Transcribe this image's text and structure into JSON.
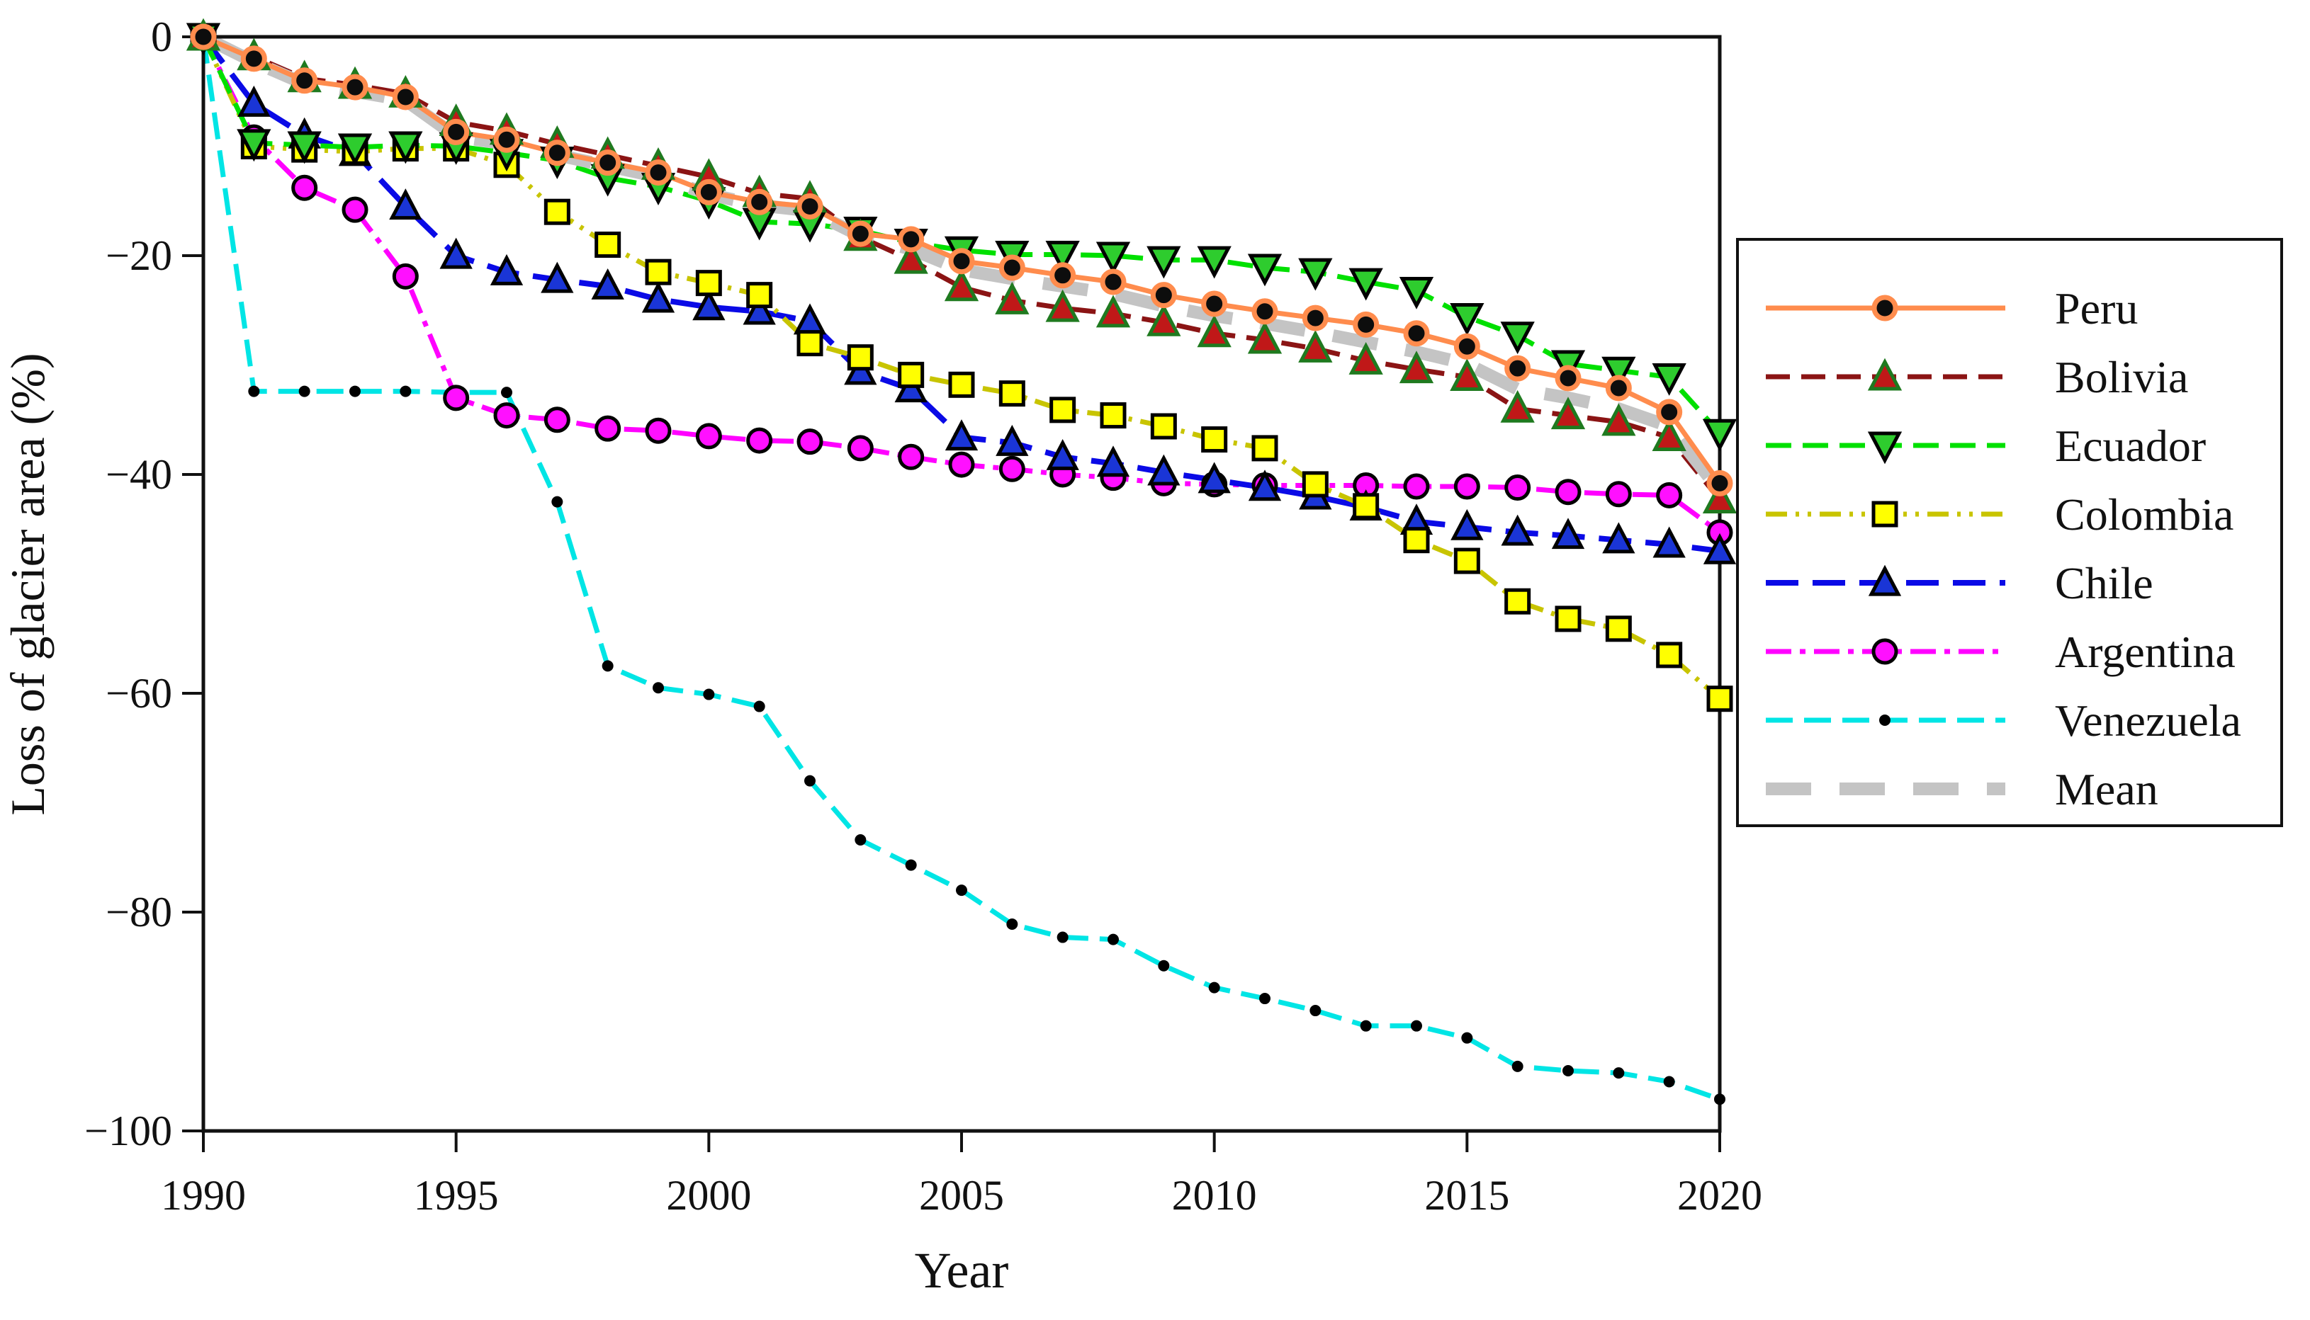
{
  "chart_data": {
    "type": "line",
    "title": "",
    "xlabel": "Year",
    "ylabel": "Loss of glacier area (%)",
    "xlim": [
      1990,
      2020
    ],
    "ylim": [
      -100,
      0
    ],
    "grid": false,
    "legend_position": "right",
    "x_ticks": [
      1990,
      1995,
      2000,
      2005,
      2010,
      2015,
      2020
    ],
    "y_ticks": [
      0,
      -20,
      -40,
      -60,
      -80,
      -100
    ],
    "y_tick_labels": [
      "0",
      "−20",
      "−40",
      "−60",
      "−80",
      "−100"
    ],
    "x": [
      1990,
      1991,
      1992,
      1993,
      1994,
      1995,
      1996,
      1997,
      1998,
      1999,
      2000,
      2001,
      2002,
      2003,
      2004,
      2005,
      2006,
      2007,
      2008,
      2009,
      2010,
      2011,
      2012,
      2013,
      2014,
      2015,
      2016,
      2017,
      2018,
      2019,
      2020
    ],
    "series": [
      {
        "id": "peru",
        "label": "Peru",
        "line_color": "#FF8C4D",
        "line_style": "solid",
        "dash": "",
        "line_width": 7,
        "marker": "circle",
        "marker_fill": "#0d0d0d",
        "marker_edge": "#FF8C4D",
        "marker_edge_width": 7,
        "marker_size": 15,
        "values": [
          0,
          -2.0,
          -4.0,
          -4.6,
          -5.5,
          -8.7,
          -9.4,
          -10.6,
          -11.5,
          -12.4,
          -14.2,
          -15.1,
          -15.5,
          -18.0,
          -18.5,
          -20.5,
          -21.1,
          -21.8,
          -22.4,
          -23.6,
          -24.4,
          -25.1,
          -25.7,
          -26.3,
          -27.1,
          -28.3,
          -30.3,
          -31.2,
          -32.1,
          -34.3,
          -40.8
        ]
      },
      {
        "id": "bolivia",
        "label": "Bolivia",
        "line_color": "#8B1414",
        "line_style": "dashed",
        "dash": "34 16",
        "line_width": 7,
        "marker": "triangle-up",
        "marker_fill": "#C01818",
        "marker_edge": "#1F7A1F",
        "marker_edge_width": 5,
        "marker_size": 20,
        "values": [
          0,
          -1.8,
          -3.8,
          -4.4,
          -5.2,
          -7.8,
          -8.6,
          -9.8,
          -10.8,
          -11.8,
          -12.8,
          -14.3,
          -14.8,
          -18.3,
          -20.4,
          -22.9,
          -24.1,
          -24.8,
          -25.3,
          -26.1,
          -27.1,
          -27.7,
          -28.5,
          -29.6,
          -30.4,
          -31.1,
          -34.0,
          -34.6,
          -35.2,
          -36.6,
          -42.3
        ]
      },
      {
        "id": "ecuador",
        "label": "Ecuador",
        "line_color": "#00E000",
        "line_style": "dashed",
        "dash": "36 16",
        "line_width": 7,
        "marker": "triangle-down",
        "marker_fill": "#2ECC2E",
        "marker_edge": "#000000",
        "marker_edge_width": 5,
        "marker_size": 20,
        "values": [
          0,
          -9.7,
          -9.9,
          -10.1,
          -9.9,
          -10.0,
          -10.6,
          -11.3,
          -12.9,
          -13.7,
          -15.0,
          -16.9,
          -17.1,
          -17.7,
          -18.8,
          -19.5,
          -19.9,
          -19.9,
          -20.0,
          -20.4,
          -20.4,
          -21.1,
          -21.5,
          -22.4,
          -23.2,
          -25.6,
          -27.3,
          -29.9,
          -30.5,
          -31.1,
          -36.2
        ]
      },
      {
        "id": "colombia",
        "label": "Colombia",
        "line_color": "#C8C400",
        "line_style": "dash-dot-dot",
        "dash": "30 12 5 12 5 12",
        "line_width": 7,
        "marker": "square",
        "marker_fill": "#FFFF00",
        "marker_edge": "#000000",
        "marker_edge_width": 5,
        "marker_size": 16,
        "values": [
          0,
          -10.0,
          -10.3,
          -10.5,
          -10.2,
          -10.2,
          -11.7,
          -16.0,
          -19.0,
          -21.5,
          -22.5,
          -23.6,
          -28.0,
          -29.3,
          -30.9,
          -31.8,
          -32.6,
          -34.1,
          -34.6,
          -35.6,
          -36.8,
          -37.6,
          -40.9,
          -42.9,
          -46.0,
          -47.9,
          -51.6,
          -53.2,
          -54.1,
          -56.5,
          -60.5
        ]
      },
      {
        "id": "chile",
        "label": "Chile",
        "line_color": "#0A0AE6",
        "line_style": "long-dash",
        "dash": "46 20",
        "line_width": 8,
        "marker": "triangle-up",
        "marker_fill": "#1A35D6",
        "marker_edge": "#000000",
        "marker_edge_width": 5,
        "marker_size": 19,
        "values": [
          0,
          -6.1,
          -9.0,
          -10.6,
          -15.5,
          -20.0,
          -21.5,
          -22.2,
          -22.8,
          -24.0,
          -24.7,
          -25.1,
          -26.0,
          -30.6,
          -32.2,
          -36.6,
          -37.1,
          -38.4,
          -39.0,
          -39.8,
          -40.5,
          -41.2,
          -42.0,
          -43.0,
          -44.3,
          -44.8,
          -45.3,
          -45.6,
          -46.0,
          -46.4,
          -47.0
        ]
      },
      {
        "id": "argentina",
        "label": "Argentina",
        "line_color": "#FF00FF",
        "line_style": "dash-dot",
        "dash": "36 12 8 12",
        "line_width": 7,
        "marker": "circle",
        "marker_fill": "#FF10FF",
        "marker_edge": "#000000",
        "marker_edge_width": 5,
        "marker_size": 16,
        "values": [
          0,
          -9.2,
          -13.8,
          -15.8,
          -21.9,
          -33.0,
          -34.6,
          -35.0,
          -35.8,
          -36.0,
          -36.5,
          -36.9,
          -37.0,
          -37.6,
          -38.4,
          -39.1,
          -39.5,
          -40.0,
          -40.3,
          -40.8,
          -40.9,
          -41.0,
          -41.0,
          -41.0,
          -41.1,
          -41.1,
          -41.2,
          -41.6,
          -41.8,
          -41.9,
          -45.3
        ]
      },
      {
        "id": "venezuela",
        "label": "Venezuela",
        "line_color": "#00E5E5",
        "line_style": "dashed",
        "dash": "38 16",
        "line_width": 7,
        "marker": "dot",
        "marker_fill": "#000000",
        "marker_edge": "#000000",
        "marker_edge_width": 0,
        "marker_size": 8,
        "values": [
          0,
          -32.4,
          -32.4,
          -32.4,
          -32.4,
          -32.5,
          -32.5,
          -42.5,
          -57.5,
          -59.5,
          -60.1,
          -61.2,
          -68.0,
          -73.4,
          -75.7,
          -78.0,
          -81.1,
          -82.3,
          -82.5,
          -84.9,
          -86.9,
          -87.9,
          -89.0,
          -90.4,
          -90.4,
          -91.5,
          -94.1,
          -94.5,
          -94.7,
          -95.5,
          -97.1
        ]
      },
      {
        "id": "mean",
        "label": "Mean",
        "line_color": "#C4C4C4",
        "line_style": "thick-dash",
        "dash": "64 40",
        "line_width": 18,
        "marker": "none",
        "marker_fill": "",
        "marker_edge": "",
        "marker_edge_width": 0,
        "marker_size": 0,
        "values": [
          0,
          -2.3,
          -4.3,
          -5.0,
          -5.8,
          -9.1,
          -9.8,
          -10.8,
          -11.8,
          -12.8,
          -14.4,
          -15.4,
          -15.9,
          -18.2,
          -19.4,
          -21.3,
          -22.1,
          -22.8,
          -23.5,
          -24.6,
          -25.5,
          -26.2,
          -27.0,
          -27.9,
          -28.8,
          -29.9,
          -32.2,
          -33.0,
          -34.0,
          -35.6,
          -41.5
        ]
      }
    ],
    "axis_color": "#111111",
    "text_color": "#111111"
  }
}
